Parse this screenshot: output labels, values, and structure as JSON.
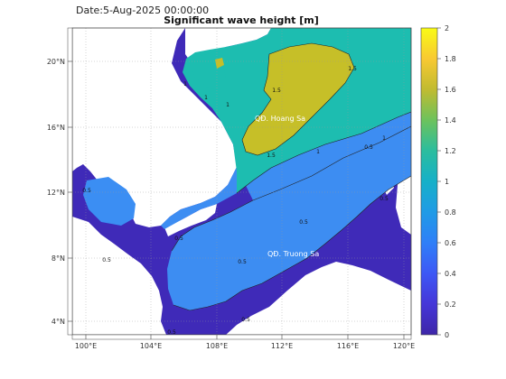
{
  "header": {
    "date": "Date:5-Aug-2025 00:00:00",
    "title": "Significant wave height [m]"
  },
  "map": {
    "lon_ticks": [
      "100°E",
      "104°E",
      "108°E",
      "112°E",
      "116°E",
      "120°E"
    ],
    "lat_ticks": [
      "20°N",
      "16°N",
      "12°N",
      "8°N",
      "4°N"
    ],
    "labels": {
      "hoang_sa": "QĐ. Hoang Sa",
      "truong_sa": "QĐ. Truong Sa"
    },
    "contour_labels": [
      "1",
      "1.5",
      "1.5",
      "1.5",
      "1",
      "1",
      "1",
      "1",
      "0.5",
      "0.5",
      "0.5",
      "0.5",
      "0.5",
      "0.5",
      "0.5",
      "0.5",
      "0.5"
    ],
    "land_color": "#ffffff",
    "grid": "dotted"
  },
  "colorbar": {
    "ticks": [
      "2",
      "1.8",
      "1.6",
      "1.4",
      "1.2",
      "1",
      "0.8",
      "0.6",
      "0.4",
      "0.2",
      "0"
    ],
    "colors": {
      "low": "#3e26a8",
      "mid_low": "#2e87f7",
      "mid": "#17beb4",
      "mid_high": "#c9c02c",
      "high": "#f9fb15"
    }
  }
}
